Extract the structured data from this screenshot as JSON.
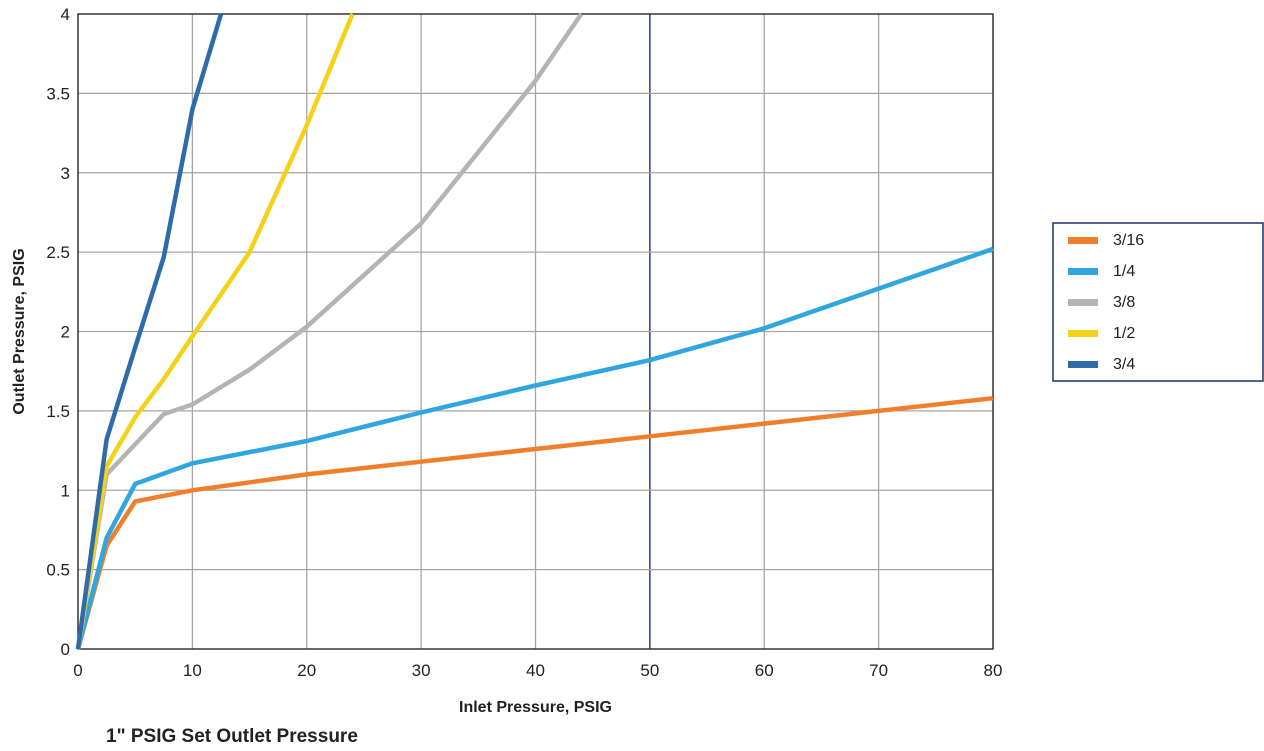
{
  "caption": "1\" PSIG Set Outlet Pressure",
  "chart_data": {
    "type": "line",
    "title": "",
    "xlabel": "Inlet Pressure, PSIG",
    "ylabel": "Outlet Pressure, PSIG",
    "xlim": [
      0,
      80
    ],
    "ylim": [
      0,
      4
    ],
    "xticks": [
      0,
      10,
      20,
      30,
      40,
      50,
      60,
      70,
      80
    ],
    "yticks": [
      0,
      0.5,
      1,
      1.5,
      2,
      2.5,
      3,
      3.5,
      4
    ],
    "grid": true,
    "legend_position": "right",
    "highlight_x": 50,
    "series": [
      {
        "name": "3/16",
        "color": "#F07F2B",
        "x": [
          0,
          2.5,
          5,
          10,
          20,
          30,
          40,
          50,
          60,
          70,
          80
        ],
        "y": [
          0,
          0.65,
          0.93,
          1.0,
          1.1,
          1.18,
          1.26,
          1.34,
          1.42,
          1.5,
          1.58
        ]
      },
      {
        "name": "1/4",
        "color": "#2FA6DF",
        "x": [
          0,
          2.5,
          5,
          10,
          20,
          30,
          40,
          50,
          60,
          70,
          80
        ],
        "y": [
          0,
          0.7,
          1.04,
          1.17,
          1.31,
          1.49,
          1.66,
          1.82,
          2.02,
          2.27,
          2.52
        ]
      },
      {
        "name": "3/8",
        "color": "#B4B4B4",
        "x": [
          0,
          2.5,
          7.5,
          10,
          15,
          20,
          30,
          40,
          44
        ],
        "y": [
          0,
          1.1,
          1.48,
          1.54,
          1.76,
          2.03,
          2.68,
          3.58,
          4.0
        ]
      },
      {
        "name": "1/2",
        "color": "#F5D21A",
        "x": [
          0,
          2.5,
          5,
          7.5,
          10,
          15,
          20,
          24
        ],
        "y": [
          0,
          1.15,
          1.46,
          1.7,
          1.97,
          2.5,
          3.3,
          4.0
        ]
      },
      {
        "name": "3/4",
        "color": "#2E6BA8",
        "x": [
          0,
          2.5,
          5,
          7.5,
          10,
          12.5
        ],
        "y": [
          0,
          1.32,
          1.9,
          2.47,
          3.4,
          4.0
        ]
      }
    ]
  }
}
